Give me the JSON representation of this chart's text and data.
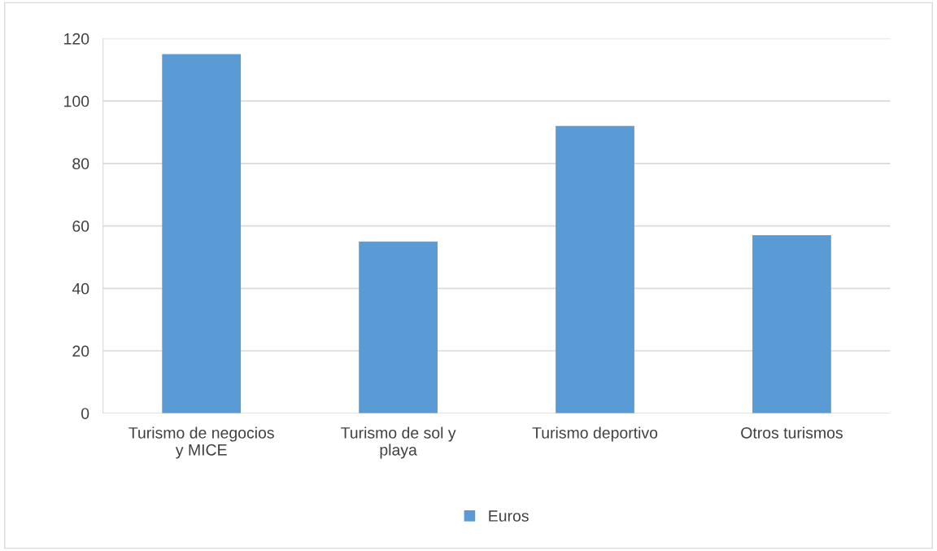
{
  "chart_data": {
    "type": "bar",
    "categories": [
      "Turismo de negocios\ny MICE",
      "Turismo de sol y\nplaya",
      "Turismo deportivo",
      "Otros turismos"
    ],
    "series": [
      {
        "name": "Euros",
        "color": "#5b9bd5",
        "values": [
          115,
          55,
          92,
          57
        ]
      }
    ],
    "ylim": [
      0,
      120
    ],
    "yticks": [
      0,
      20,
      40,
      60,
      80,
      100,
      120
    ],
    "grid": "y",
    "legend": "bottom"
  }
}
